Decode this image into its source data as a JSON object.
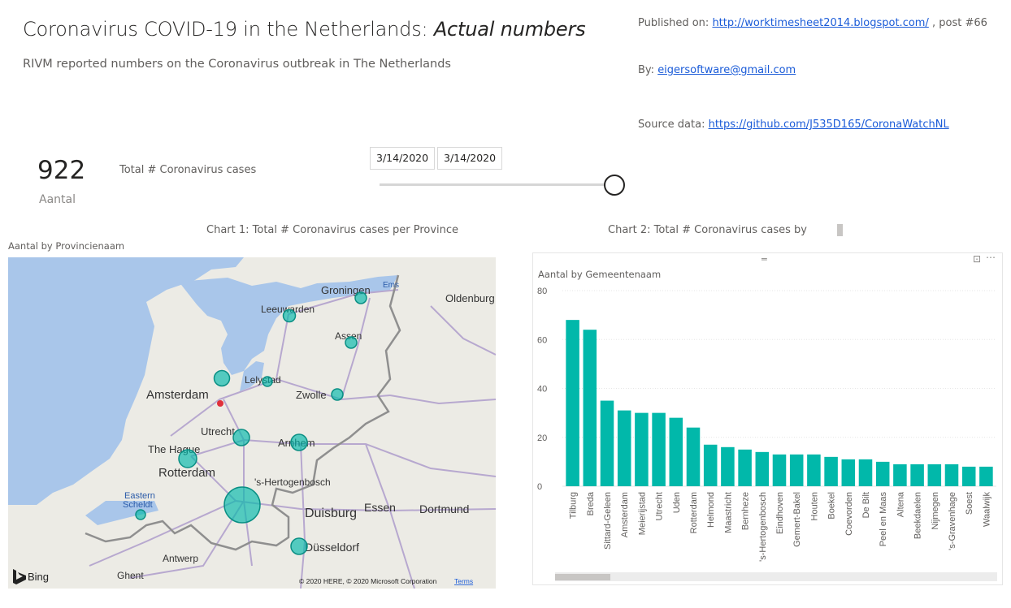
{
  "header": {
    "title_main": "Coronavirus COVID-19 in the Netherlands: ",
    "title_emph": "Actual numbers",
    "subtitle": "RIVM reported numbers on the Coronavirus outbreak in The Netherlands"
  },
  "meta": {
    "published_prefix": "Published on: ",
    "published_link": "http://worktimesheet2014.blogspot.com/",
    "published_suffix": " , post #66",
    "by_prefix": "By: ",
    "by_link": "eigersoftware@gmail.com",
    "source_prefix": "Source data: ",
    "source_link": "https://github.com/J535D165/CoronaWatchNL"
  },
  "card": {
    "value": "922",
    "label": "Aantal",
    "title": "Total # Coronavirus cases"
  },
  "date_slicer": {
    "start": "3/14/2020",
    "end": "3/14/2020",
    "position": 1.0
  },
  "map_visual": {
    "chart_title": "Chart 1: Total # Coronavirus cases per Province",
    "viz_title": "Aantal by Provincienaam",
    "bing_label": "Bing",
    "copyright": "© 2020 HERE, © 2020 Microsoft Corporation",
    "terms": "Terms",
    "places": [
      {
        "name": "Groningen"
      },
      {
        "name": "Leeuwarden"
      },
      {
        "name": "Oldenburg"
      },
      {
        "name": "Assen"
      },
      {
        "name": "Lelystad"
      },
      {
        "name": "Amsterdam"
      },
      {
        "name": "Zwolle"
      },
      {
        "name": "Utrecht"
      },
      {
        "name": "The Hague"
      },
      {
        "name": "Arnhem"
      },
      {
        "name": "Rotterdam"
      },
      {
        "name": "'s-Hertogenbosch"
      },
      {
        "name": "Eastern"
      },
      {
        "name": "Scheldt"
      },
      {
        "name": "Duisburg"
      },
      {
        "name": "Essen"
      },
      {
        "name": "Dortmund"
      },
      {
        "name": "Düsseldorf"
      },
      {
        "name": "Antwerp"
      },
      {
        "name": "Ghent"
      },
      {
        "name": "Ems"
      }
    ]
  },
  "bar_visual": {
    "chart_title": "Chart 2: Total # Coronavirus cases by",
    "viz_title": "Aantal by Gemeentenaam",
    "focus_icon": "focus-mode-icon",
    "more_icon": "more-options-icon",
    "grip_icon": "drag-handle-icon"
  },
  "colors": {
    "accent": "#01B8AA",
    "link": "#1a5bd8",
    "water": "#a9c6ea",
    "land": "#eceae3",
    "road": "#b7a8cf"
  },
  "chart_data": {
    "type": "bar",
    "title": "Aantal by Gemeentenaam",
    "xlabel": "",
    "ylabel": "",
    "ylim": [
      0,
      80
    ],
    "yticks": [
      0,
      20,
      40,
      60,
      80
    ],
    "grid": true,
    "categories": [
      "Tilburg",
      "Breda",
      "Sittard-Geleen",
      "Amsterdam",
      "Meierijstad",
      "Utrecht",
      "Uden",
      "Rotterdam",
      "Helmond",
      "Maastricht",
      "Bernheze",
      "'s-Hertogenbosch",
      "Eindhoven",
      "Gemert-Bakel",
      "Houten",
      "Boekel",
      "Coevorden",
      "De Bilt",
      "Peel en Maas",
      "Altena",
      "Beekdaelen",
      "Nijmegen",
      "'s-Gravenhage",
      "Soest",
      "Waalwijk"
    ],
    "values": [
      68,
      64,
      35,
      31,
      30,
      30,
      28,
      24,
      17,
      16,
      15,
      14,
      13,
      13,
      13,
      12,
      11,
      11,
      10,
      9,
      9,
      9,
      9,
      8,
      8
    ]
  }
}
